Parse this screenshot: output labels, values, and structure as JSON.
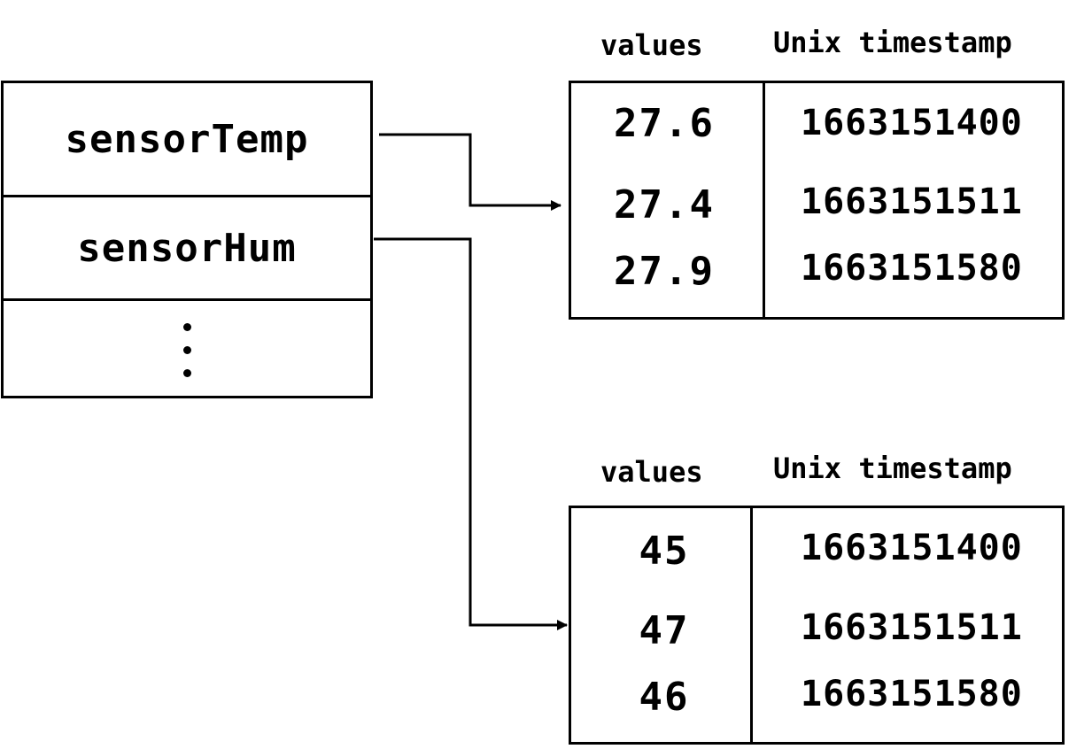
{
  "keys": {
    "items": [
      "sensorTemp",
      "sensorHum"
    ]
  },
  "series": [
    {
      "header_values": "values",
      "header_timestamp": "Unix timestamp",
      "rows": [
        {
          "value": "27.6",
          "timestamp": "1663151400"
        },
        {
          "value": "27.4",
          "timestamp": "1663151511"
        },
        {
          "value": "27.9",
          "timestamp": "1663151580"
        }
      ]
    },
    {
      "header_values": "values",
      "header_timestamp": "Unix timestamp",
      "rows": [
        {
          "value": "45",
          "timestamp": "1663151400"
        },
        {
          "value": "47",
          "timestamp": "1663151511"
        },
        {
          "value": "46",
          "timestamp": "1663151580"
        }
      ]
    }
  ],
  "colors": {
    "stroke": "#000000",
    "background": "#ffffff"
  }
}
